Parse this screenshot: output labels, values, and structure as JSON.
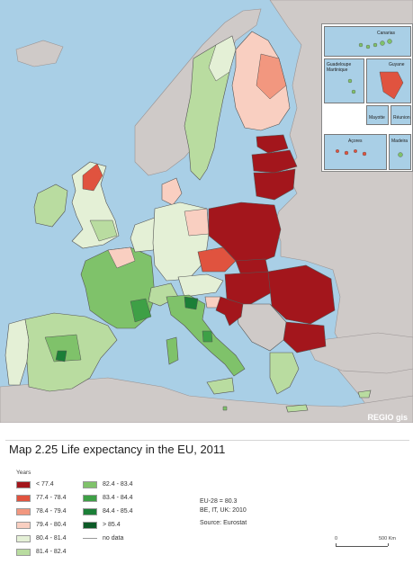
{
  "caption": "Map 2.25 Life expectancy in the EU, 2011",
  "credit": "REGIO gis",
  "colors": {
    "sea": "#a9cfe6",
    "non_eu_land": "#cfcac8",
    "border": "#555555",
    "lt_77_4": "#a3161c",
    "77_4_78_4": "#e0533f",
    "78_4_79_4": "#f2977f",
    "79_4_80_4": "#f9cfc1",
    "80_4_81_4": "#e4f0d6",
    "81_4_82_4": "#b9dca0",
    "82_4_83_4": "#7fc26a",
    "83_4_84_4": "#3ea046",
    "84_4_85_4": "#1b7f37",
    "gt_85_4": "#0c5a27"
  },
  "insets": {
    "canarias": "Canarias",
    "guadeloupe_martinique": "Guadeloupe\nMartinique",
    "guyane": "Guyane",
    "mayotte": "Mayotte",
    "reunion": "Réunion",
    "acores": "Açores",
    "madeira": "Madeira"
  },
  "legend": {
    "title": "Years",
    "items": [
      {
        "label": "< 77.4",
        "color": "#a3161c"
      },
      {
        "label": "77.4 - 78.4",
        "color": "#e0533f"
      },
      {
        "label": "78.4 - 79.4",
        "color": "#f2977f"
      },
      {
        "label": "79.4 - 80.4",
        "color": "#f9cfc1"
      },
      {
        "label": "80.4 - 81.4",
        "color": "#e4f0d6"
      },
      {
        "label": "81.4 - 82.4",
        "color": "#b9dca0"
      },
      {
        "label": "82.4 - 83.4",
        "color": "#7fc26a"
      },
      {
        "label": "83.4 - 84.4",
        "color": "#3ea046"
      },
      {
        "label": "84.4 - 85.4",
        "color": "#1b7f37"
      },
      {
        "label": "> 85.4",
        "color": "#0c5a27"
      },
      {
        "label": "no data",
        "color": ""
      }
    ]
  },
  "notes": {
    "line1": "EU-28 = 80.3",
    "line2": "BE, IT, UK: 2010",
    "line3": "Source: Eurostat"
  },
  "scale": {
    "zero": "0",
    "end": "500 Km"
  }
}
